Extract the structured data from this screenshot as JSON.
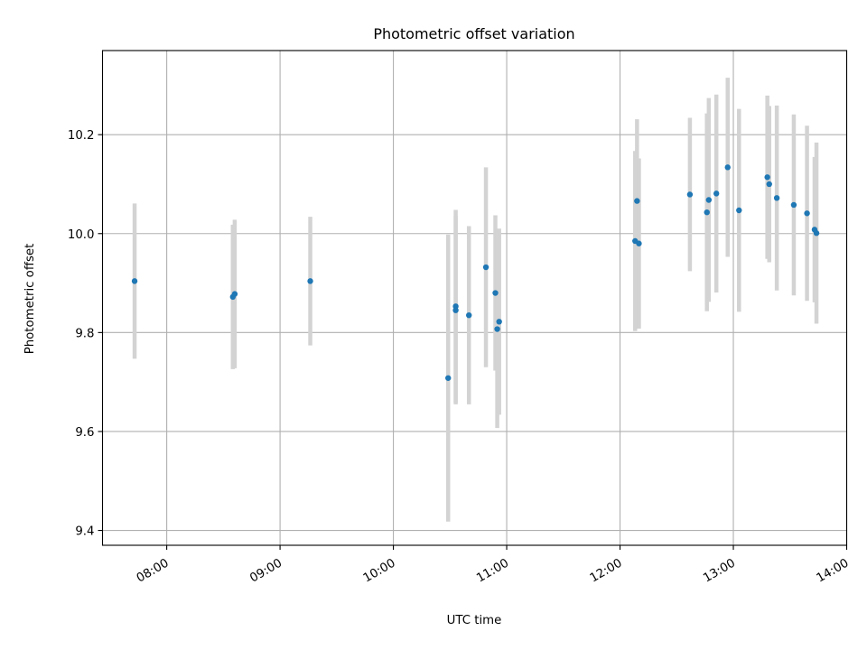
{
  "chart_data": {
    "type": "scatter",
    "title": "Photometric offset variation",
    "xlabel": "UTC time",
    "ylabel": "Photometric offset",
    "xlim": [
      "07:26",
      "14:00"
    ],
    "ylim": [
      9.37,
      10.37
    ],
    "x_ticks": [
      "08:00",
      "09:00",
      "10:00",
      "11:00",
      "12:00",
      "13:00",
      "14:00"
    ],
    "y_ticks": [
      9.4,
      9.6,
      9.8,
      10.0,
      10.2
    ],
    "y_tick_labels": [
      "9.4",
      "9.6",
      "9.8",
      "10.0",
      "10.2"
    ],
    "grid": true,
    "point_color": "#1f77b4",
    "errorbar_color": "#d3d3d3",
    "points": [
      {
        "x": "07:43",
        "y": 9.904,
        "err": 0.157
      },
      {
        "x": "08:35",
        "y": 9.872,
        "err": 0.146
      },
      {
        "x": "08:36",
        "y": 9.878,
        "err": 0.15
      },
      {
        "x": "09:16",
        "y": 9.904,
        "err": 0.13
      },
      {
        "x": "10:29",
        "y": 9.708,
        "err": 0.29
      },
      {
        "x": "10:33",
        "y": 9.853,
        "err": 0.195
      },
      {
        "x": "10:33",
        "y": 9.845,
        "err": 0.19
      },
      {
        "x": "10:40",
        "y": 9.835,
        "err": 0.18
      },
      {
        "x": "10:49",
        "y": 9.932,
        "err": 0.202
      },
      {
        "x": "10:54",
        "y": 9.88,
        "err": 0.157
      },
      {
        "x": "10:55",
        "y": 9.807,
        "err": 0.2
      },
      {
        "x": "10:56",
        "y": 9.822,
        "err": 0.188
      },
      {
        "x": "12:08",
        "y": 9.985,
        "err": 0.182
      },
      {
        "x": "12:09",
        "y": 10.066,
        "err": 0.165
      },
      {
        "x": "12:10",
        "y": 9.98,
        "err": 0.172
      },
      {
        "x": "12:37",
        "y": 10.079,
        "err": 0.155
      },
      {
        "x": "12:46",
        "y": 10.043,
        "err": 0.2
      },
      {
        "x": "12:47",
        "y": 10.068,
        "err": 0.206
      },
      {
        "x": "12:51",
        "y": 10.081,
        "err": 0.2
      },
      {
        "x": "12:57",
        "y": 10.134,
        "err": 0.181
      },
      {
        "x": "13:03",
        "y": 10.047,
        "err": 0.205
      },
      {
        "x": "13:18",
        "y": 10.114,
        "err": 0.165
      },
      {
        "x": "13:19",
        "y": 10.1,
        "err": 0.158
      },
      {
        "x": "13:23",
        "y": 10.072,
        "err": 0.187
      },
      {
        "x": "13:32",
        "y": 10.058,
        "err": 0.183
      },
      {
        "x": "13:39",
        "y": 10.041,
        "err": 0.177
      },
      {
        "x": "13:43",
        "y": 10.008,
        "err": 0.147
      },
      {
        "x": "13:44",
        "y": 10.001,
        "err": 0.183
      }
    ]
  }
}
